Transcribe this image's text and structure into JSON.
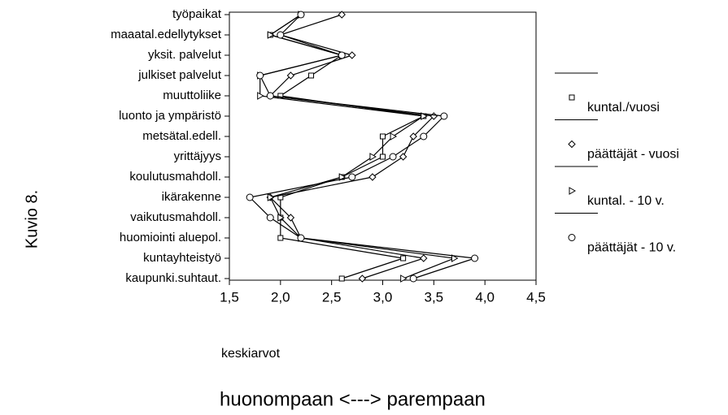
{
  "chart_data": {
    "type": "line",
    "orientation": "horizontal",
    "side_label": "Kuvio 8.",
    "x_label": "keskiarvot",
    "caption": "huonompaan  <---> parempaan",
    "categories": [
      "työpaikat",
      "maaatal.edellytykset",
      "yksit. palvelut",
      "julkiset palvelut",
      "muuttoliike",
      "luonto ja ympäristö",
      "metsätal.edell.",
      "yrittäjyys",
      "koulutusmahdoll.",
      "ikärakenne",
      "vaikutusmahdoll.",
      "huomiointi aluepol.",
      "kuntayhteistyö",
      "kaupunki.suhtaut."
    ],
    "series": [
      {
        "name": "kuntal./vuosi",
        "color": "#000000",
        "marker": "square",
        "values": [
          2.2,
          1.9,
          2.6,
          2.3,
          2.0,
          3.4,
          3.0,
          3.0,
          2.6,
          2.0,
          2.0,
          2.0,
          3.2,
          2.6
        ]
      },
      {
        "name": "päättäjät - vuosi",
        "color": "#000000",
        "marker": "diamond",
        "values": [
          2.6,
          2.0,
          2.7,
          2.1,
          1.9,
          3.5,
          3.3,
          3.2,
          2.9,
          1.9,
          2.1,
          2.2,
          3.4,
          2.8
        ]
      },
      {
        "name": "kuntal. - 10 v.",
        "color": "#000000",
        "marker": "triangle",
        "values": [
          2.2,
          1.9,
          2.6,
          1.8,
          1.8,
          3.4,
          3.1,
          2.9,
          2.6,
          1.9,
          2.0,
          2.2,
          3.7,
          3.2
        ]
      },
      {
        "name": "päättäjät -  10 v.",
        "color": "#000000",
        "marker": "circle",
        "values": [
          2.2,
          2.0,
          2.6,
          1.8,
          1.9,
          3.6,
          3.4,
          3.1,
          2.7,
          1.7,
          1.9,
          2.2,
          3.9,
          3.3
        ]
      }
    ],
    "xlim": [
      1.5,
      4.5
    ],
    "xticks": [
      {
        "value": 1.5,
        "label": "1,5"
      },
      {
        "value": 2.0,
        "label": "2,0"
      },
      {
        "value": 2.5,
        "label": "2,5"
      },
      {
        "value": 3.0,
        "label": "3,0"
      },
      {
        "value": 3.5,
        "label": "3,5"
      },
      {
        "value": 4.0,
        "label": "4,0"
      },
      {
        "value": 4.5,
        "label": "4,5"
      }
    ]
  }
}
